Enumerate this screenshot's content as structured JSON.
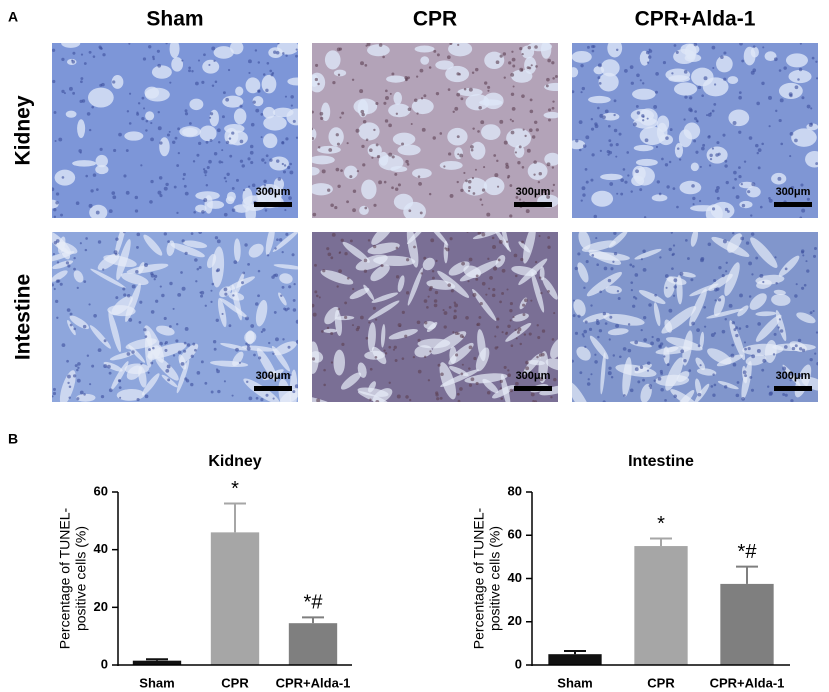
{
  "panels": {
    "label_a": "A",
    "label_b": "B",
    "columns": [
      "Sham",
      "CPR",
      "CPR+Alda-1"
    ],
    "rows": [
      "Kidney",
      "Intestine"
    ],
    "scale_bar": "300μm"
  },
  "chart_data": [
    {
      "type": "bar",
      "title": "Kidney",
      "y_label": [
        "Percentage of TUNEL-",
        "positive cells (%)"
      ],
      "categories": [
        "Sham",
        "CPR",
        "CPR+Alda-1"
      ],
      "values": [
        1.5,
        46,
        14.5
      ],
      "errors": [
        0.5,
        10,
        2
      ],
      "colors": [
        "#111111",
        "#a6a6a6",
        "#7f7f7f"
      ],
      "annotations": [
        null,
        "*",
        "*#"
      ],
      "ylim": [
        0,
        60
      ],
      "yticks": [
        0,
        20,
        40,
        60
      ]
    },
    {
      "type": "bar",
      "title": "Intestine",
      "y_label": [
        "Percentage of TUNEL-",
        "positive cells (%)"
      ],
      "categories": [
        "Sham",
        "CPR",
        "CPR+Alda-1"
      ],
      "values": [
        5,
        55,
        37.5
      ],
      "errors": [
        1.5,
        3.5,
        8
      ],
      "colors": [
        "#111111",
        "#a6a6a6",
        "#7f7f7f"
      ],
      "annotations": [
        null,
        "*",
        "*#"
      ],
      "ylim": [
        0,
        80
      ],
      "yticks": [
        0,
        20,
        40,
        60,
        80
      ]
    }
  ]
}
